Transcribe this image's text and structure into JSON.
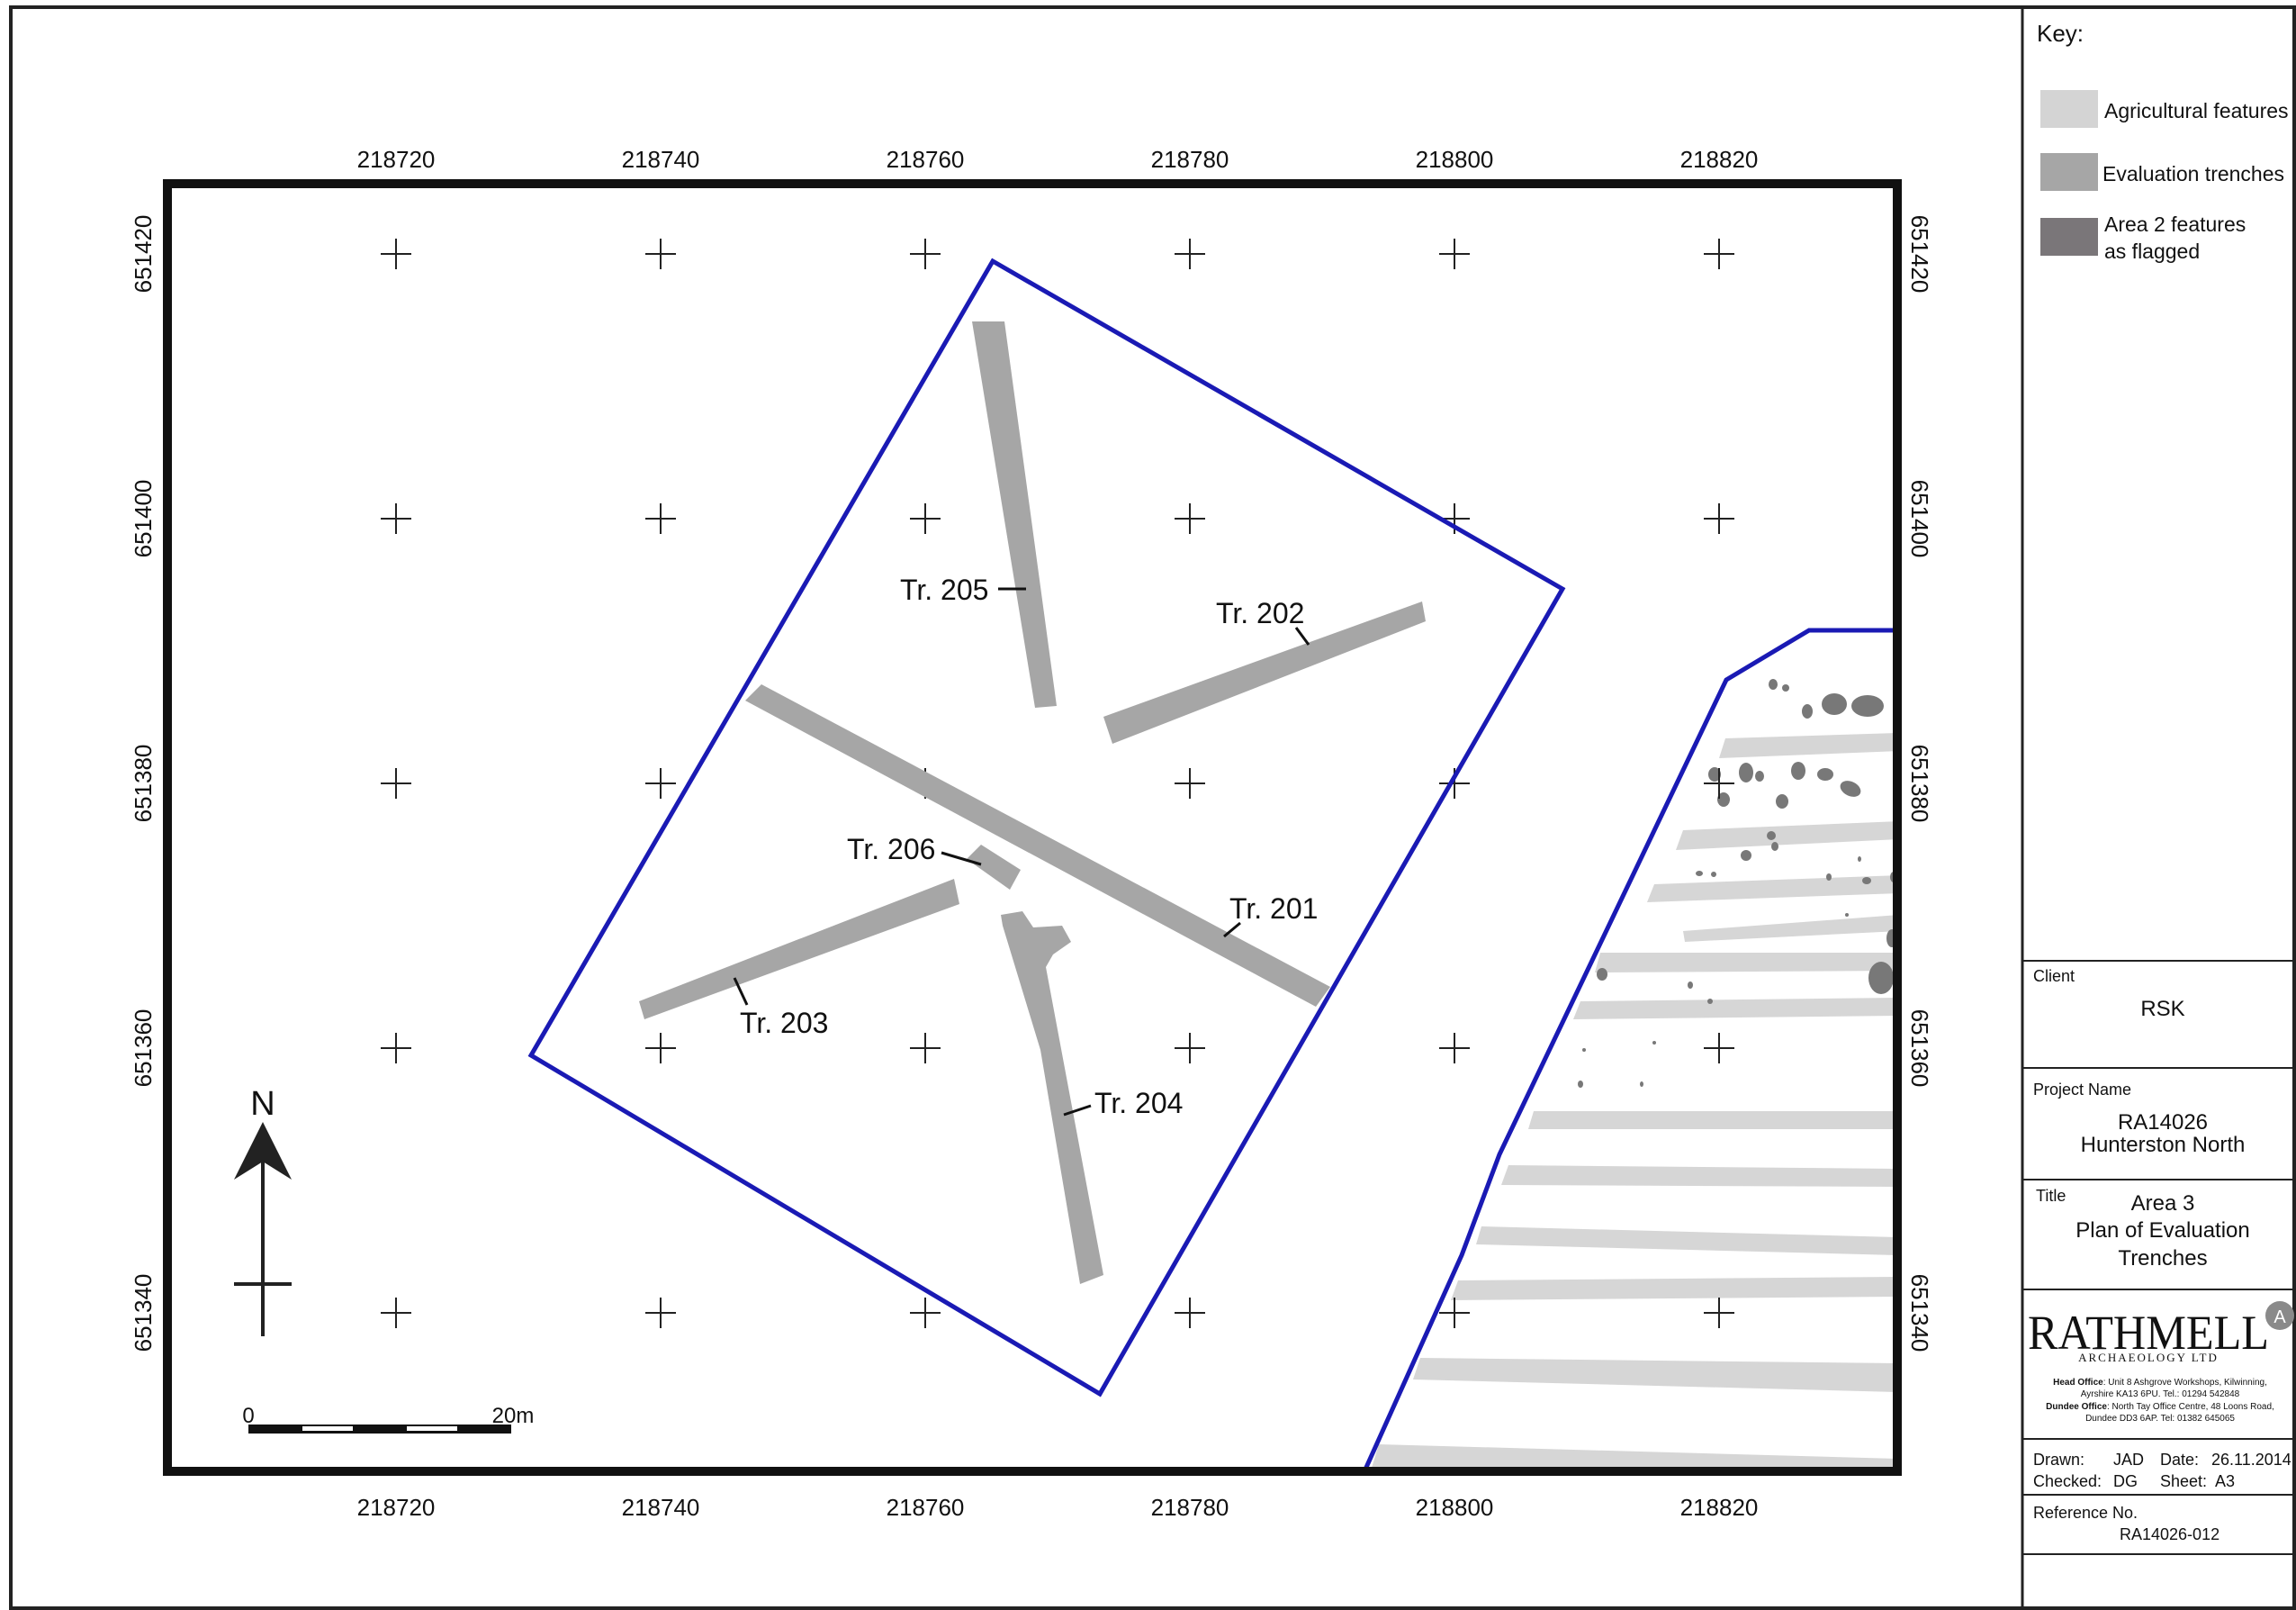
{
  "map": {
    "easting_labels": [
      "218720",
      "218740",
      "218760",
      "218780",
      "218800",
      "218820"
    ],
    "northing_labels": [
      "651420",
      "651400",
      "651380",
      "651360",
      "651340"
    ],
    "trench_labels": {
      "t201": "Tr. 201",
      "t202": "Tr. 202",
      "t203": "Tr. 203",
      "t204": "Tr. 204",
      "t205": "Tr. 205",
      "t206": "Tr. 206"
    },
    "north_arrow": "N",
    "scale_bar": {
      "start": "0",
      "end": "20m"
    },
    "colors": {
      "boundary": "#1a1ab4",
      "evaluation_trench": "#a6a6a6",
      "agricultural_feature": "#d6d6d6",
      "area2_feature": "#787878"
    }
  },
  "key": {
    "title": "Key:",
    "items": [
      {
        "label": "Agricultural features",
        "color": "#d4d4d4"
      },
      {
        "label": "Evaluation trenches",
        "color": "#a6a6a6"
      },
      {
        "label_line1": "Area 2 features",
        "label_line2": "as flagged",
        "color": "#7a7679"
      }
    ]
  },
  "titleblock": {
    "client_heading": "Client",
    "client": "RSK",
    "project_heading": "Project Name",
    "project_line1": "RA14026",
    "project_line2": "Hunterston North",
    "title_heading": "Title",
    "title_line1": "Area 3",
    "title_line2": "Plan of Evaluation",
    "title_line3": "Trenches",
    "company": {
      "logo_text": "RATHMELL",
      "logo_badge": "A",
      "logo_sub": "ARCHAEOLOGY LTD",
      "head_office_label": "Head Office",
      "head_office": ": Unit 8 Ashgrove Workshops, Kilwinning,",
      "head_office_2": "Ayrshire KA13 6PU. Tel.: 01294 542848",
      "dundee_label": "Dundee Office",
      "dundee_office": ": North Tay Office Centre, 48 Loons Road,",
      "dundee_office_2": "Dundee DD3 6AP. Tel: 01382 645065",
      "brand_color": "#8a3068"
    },
    "drawn_label": "Drawn:",
    "drawn": "JAD",
    "date_label": "Date:",
    "date": "26.11.2014",
    "checked_label": "Checked:",
    "checked": "DG",
    "sheet_label": "Sheet:",
    "sheet": "A3",
    "reference_heading": "Reference No.",
    "reference": "RA14026-012"
  }
}
